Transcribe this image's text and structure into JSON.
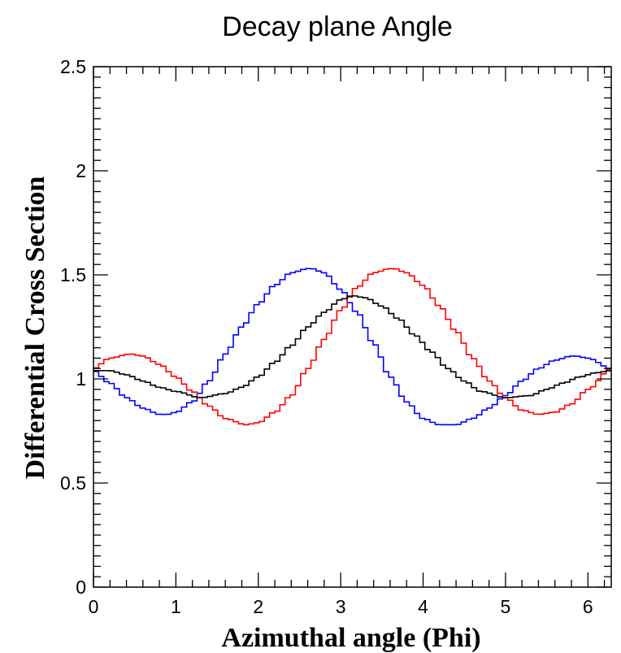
{
  "chart_data": {
    "type": "line",
    "title": "Decay plane Angle",
    "xlabel": "Azimuthal angle (Phi)",
    "ylabel": "Differential Cross Section",
    "xlim": [
      0,
      6.2832
    ],
    "ylim": [
      0,
      2.5
    ],
    "x_ticks": [
      "0",
      "1",
      "2",
      "3",
      "4",
      "5",
      "6"
    ],
    "y_ticks": [
      "0",
      "0.5",
      "1",
      "1.5",
      "2",
      "2.5"
    ],
    "grid": false,
    "legend": "none",
    "histogram_bins": 100,
    "series": [
      {
        "color": "#0000ff",
        "style": "step",
        "x": [
          0.0,
          0.2,
          0.4,
          0.6,
          0.8,
          0.9,
          1.0,
          1.2,
          1.4,
          1.6,
          1.8,
          2.0,
          2.2,
          2.4,
          2.6,
          2.65,
          2.8,
          3.0,
          3.2,
          3.4,
          3.6,
          3.8,
          4.0,
          4.2,
          4.4,
          4.6,
          4.8,
          5.0,
          5.2,
          5.4,
          5.6,
          5.8,
          5.85,
          6.0,
          6.2832
        ],
        "y": [
          1.04,
          0.98,
          0.91,
          0.86,
          0.83,
          0.83,
          0.84,
          0.89,
          0.99,
          1.12,
          1.25,
          1.36,
          1.45,
          1.51,
          1.53,
          1.53,
          1.51,
          1.43,
          1.32,
          1.17,
          1.01,
          0.89,
          0.81,
          0.78,
          0.78,
          0.81,
          0.86,
          0.92,
          0.99,
          1.05,
          1.09,
          1.11,
          1.11,
          1.1,
          1.05
        ]
      },
      {
        "color": "#ff0000",
        "style": "step",
        "x": [
          0.0,
          0.2,
          0.45,
          0.6,
          0.8,
          1.0,
          1.2,
          1.4,
          1.6,
          1.85,
          2.0,
          2.2,
          2.4,
          2.6,
          2.8,
          3.0,
          3.2,
          3.4,
          3.6,
          3.65,
          3.8,
          4.0,
          4.2,
          4.4,
          4.6,
          4.8,
          5.0,
          5.2,
          5.4,
          5.6,
          5.8,
          6.0,
          6.2832
        ],
        "y": [
          1.05,
          1.1,
          1.12,
          1.11,
          1.07,
          1.01,
          0.94,
          0.87,
          0.81,
          0.78,
          0.79,
          0.84,
          0.92,
          1.05,
          1.19,
          1.33,
          1.44,
          1.51,
          1.53,
          1.53,
          1.51,
          1.45,
          1.35,
          1.23,
          1.1,
          0.99,
          0.91,
          0.85,
          0.83,
          0.84,
          0.88,
          0.95,
          1.05
        ]
      },
      {
        "color": "#000000",
        "style": "step",
        "x": [
          0.0,
          0.2,
          0.4,
          0.6,
          0.8,
          1.0,
          1.3,
          1.6,
          1.8,
          2.0,
          2.2,
          2.4,
          2.6,
          2.8,
          3.0,
          3.14,
          3.3,
          3.5,
          3.7,
          3.9,
          4.1,
          4.3,
          4.5,
          4.7,
          5.0,
          5.3,
          5.5,
          5.7,
          5.9,
          6.1,
          6.2832
        ],
        "y": [
          1.04,
          1.04,
          1.02,
          0.99,
          0.96,
          0.94,
          0.91,
          0.93,
          0.96,
          1.01,
          1.08,
          1.16,
          1.25,
          1.32,
          1.38,
          1.4,
          1.39,
          1.35,
          1.29,
          1.21,
          1.13,
          1.05,
          0.99,
          0.94,
          0.91,
          0.92,
          0.95,
          0.98,
          1.01,
          1.03,
          1.04
        ]
      }
    ]
  }
}
